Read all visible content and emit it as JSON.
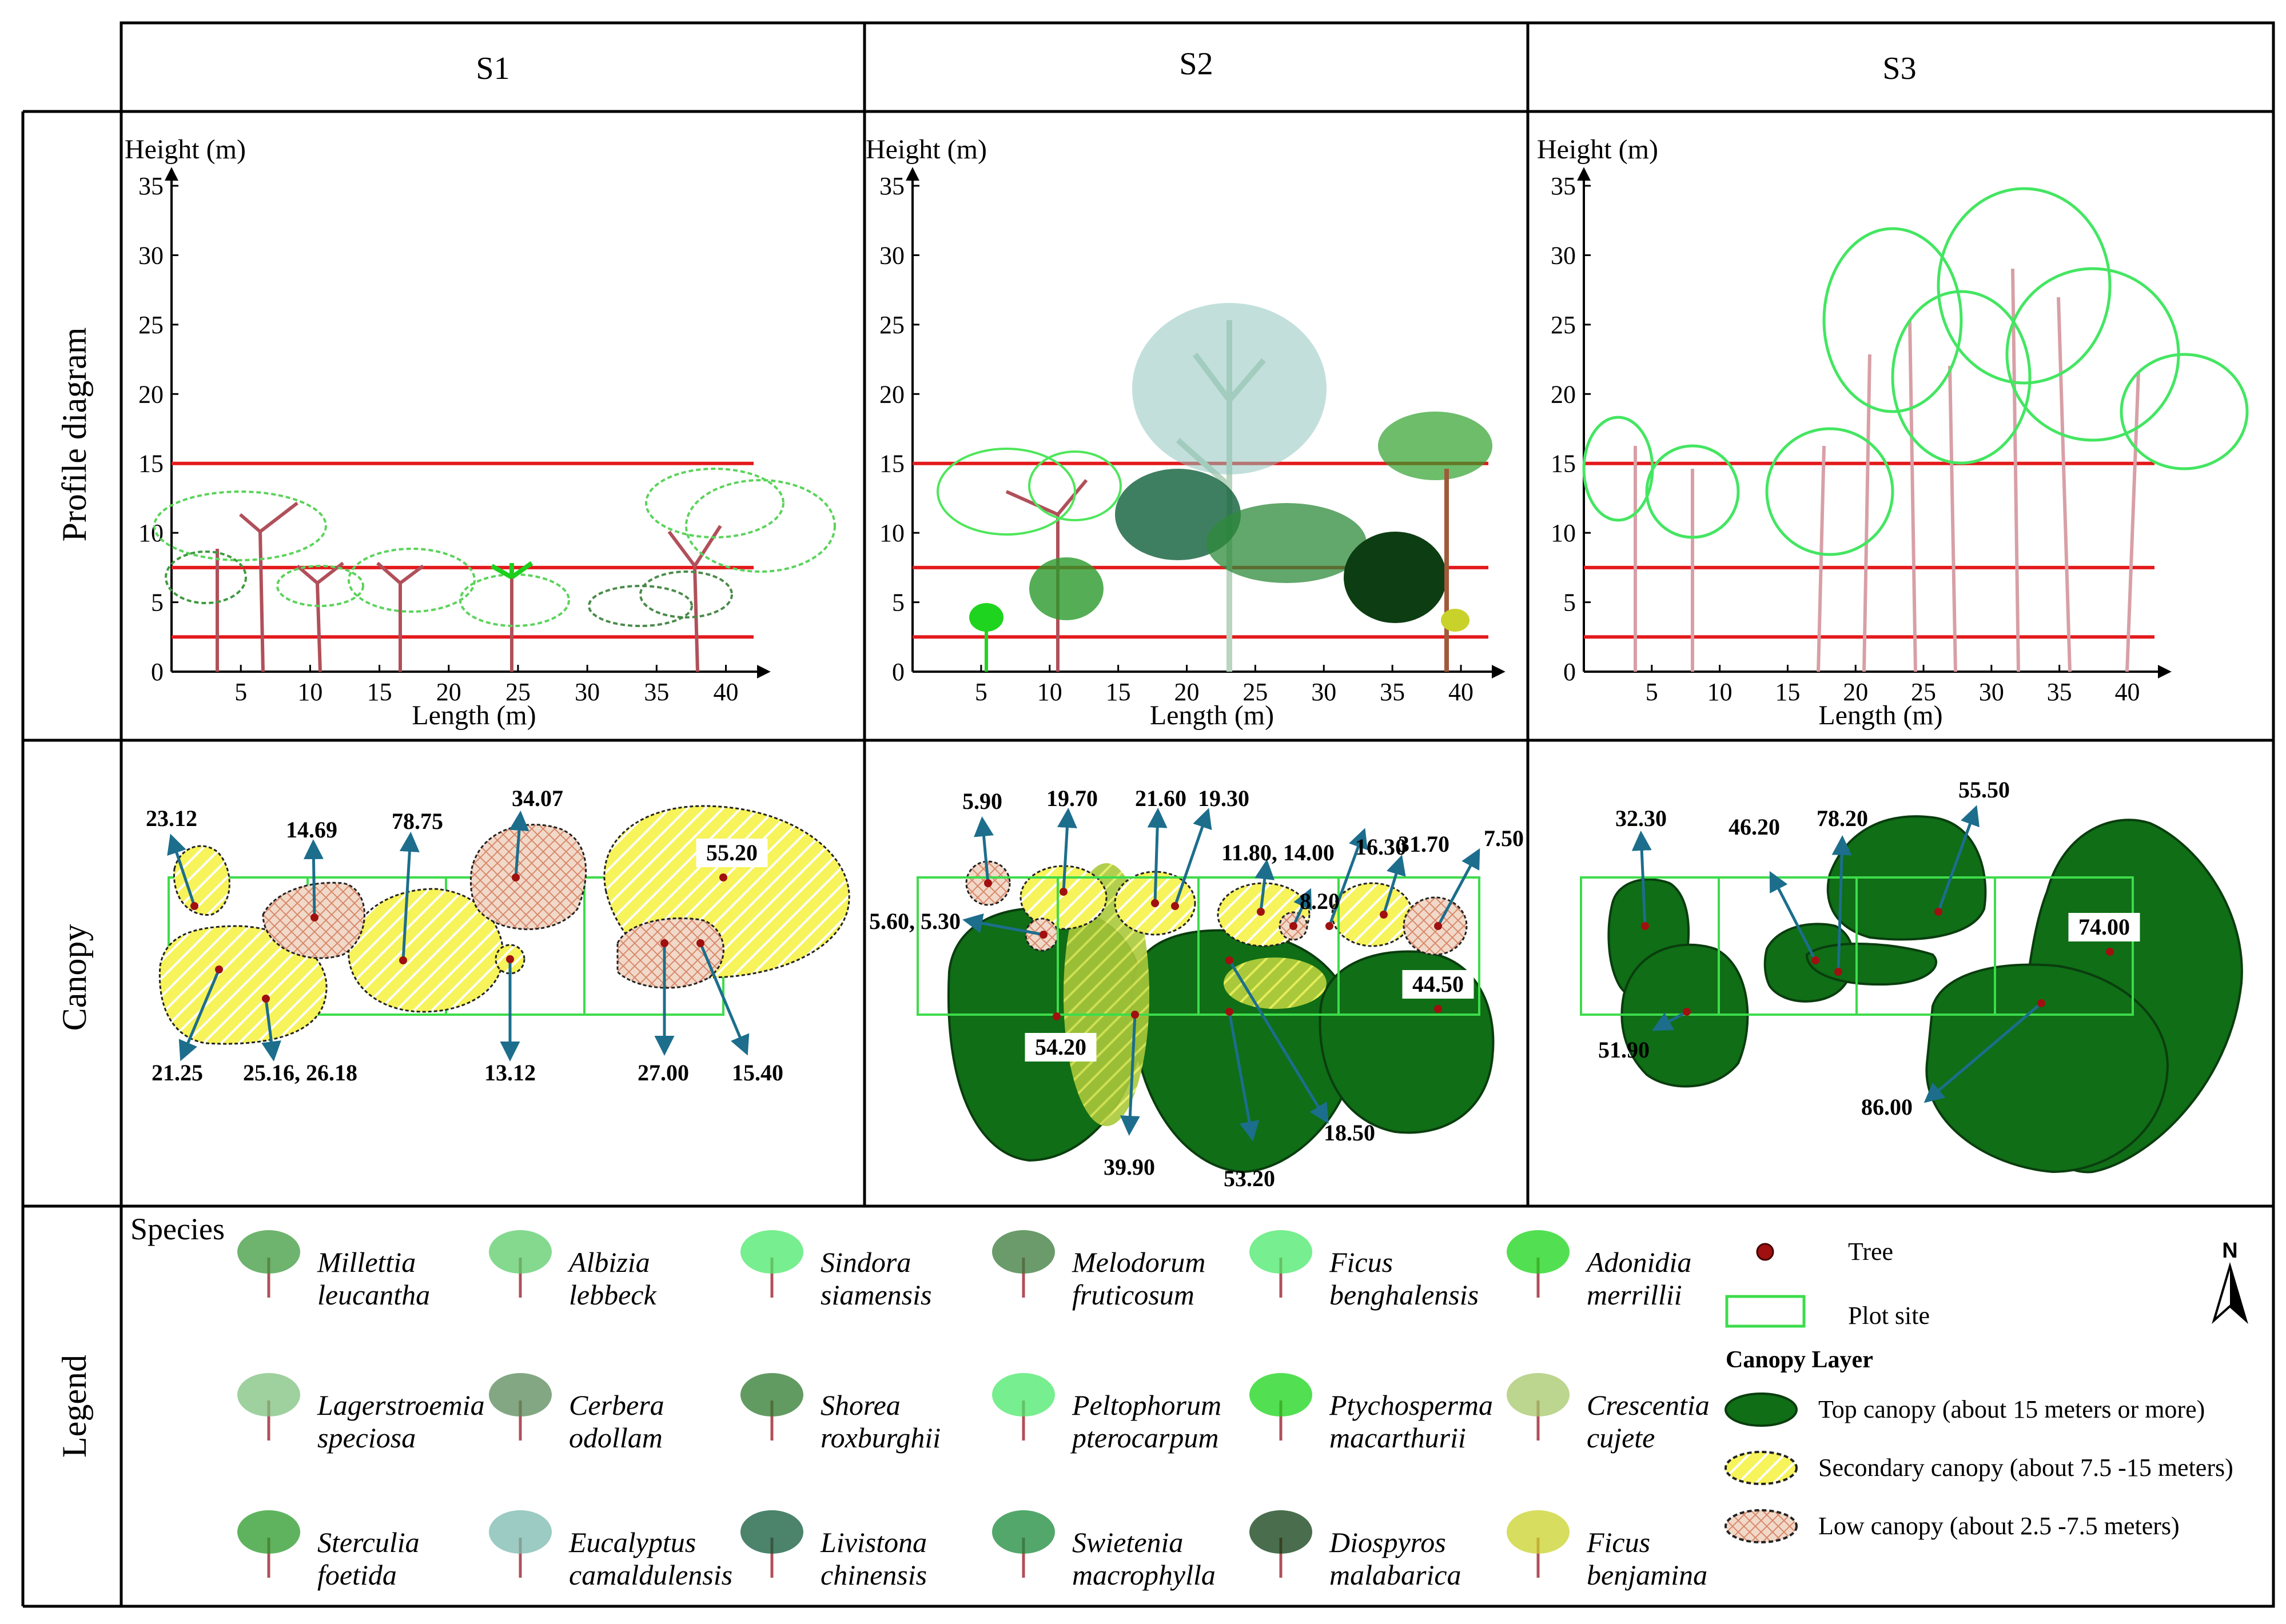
{
  "columns": [
    "S1",
    "S2",
    "S3"
  ],
  "rows": {
    "profile": "Profile diagram",
    "canopy": "Canopy",
    "legend": "Legend"
  },
  "profile": {
    "y_axis_label": "Height (m)",
    "x_axis_label": "Length (m)",
    "y_ticks": [
      "0",
      "5",
      "10",
      "15",
      "20",
      "25",
      "30",
      "35"
    ],
    "x_ticks": [
      "5",
      "10",
      "15",
      "20",
      "25",
      "30",
      "35",
      "40"
    ],
    "reference_lines_m": [
      2.5,
      7.5,
      15
    ]
  },
  "canopy": {
    "S1": [
      "23.12",
      "14.69",
      "78.75",
      "34.07",
      "55.20",
      "21.25",
      "25.16, 26.18",
      "13.12",
      "27.00",
      "15.40"
    ],
    "S2": [
      "5.90",
      "19.70",
      "21.60",
      "19.30",
      "11.80, 14.00",
      "16.30",
      "31.70",
      "7.50",
      "8.20",
      "5.60, 5.30",
      "54.20",
      "44.50",
      "39.90",
      "53.20",
      "18.50"
    ],
    "S3": [
      "32.30",
      "46.20",
      "78.20",
      "55.50",
      "74.00",
      "51.90",
      "86.00"
    ]
  },
  "legend": {
    "species_title": "Species",
    "species": [
      [
        "Millettia",
        "leucantha"
      ],
      [
        "Albizia",
        "lebbeck"
      ],
      [
        "Sindora",
        "siamensis"
      ],
      [
        "Melodorum",
        "fruticosum"
      ],
      [
        "Ficus",
        "benghalensis"
      ],
      [
        "Adonidia",
        "merrillii"
      ],
      [
        "Lagerstroemia",
        "speciosa"
      ],
      [
        "Cerbera",
        "odollam"
      ],
      [
        "Shorea",
        "roxburghii"
      ],
      [
        "Peltophorum",
        "pterocarpum"
      ],
      [
        "Ptychosperma",
        "macarthurii"
      ],
      [
        "Crescentia",
        "cujete"
      ],
      [
        "Sterculia",
        "foetida"
      ],
      [
        "Eucalyptus",
        "camaldulensis"
      ],
      [
        "Livistona",
        "chinensis"
      ],
      [
        "Swietenia",
        "macrophylla"
      ],
      [
        "Diospyros",
        "malabarica"
      ],
      [
        "Ficus",
        "benjamina"
      ]
    ],
    "tree": "Tree",
    "plot_site": "Plot site",
    "canopy_layer_title": "Canopy Layer",
    "top": "Top canopy (about 15 meters or more)",
    "secondary": "Secondary canopy (about 7.5  -15 meters)",
    "low": "Low canopy (about 2.5  -7.5 meters)",
    "north": "N"
  },
  "colors": {
    "red_line": "#e31a1c",
    "top": "#0f6e16",
    "secondary": "#f2ee3a",
    "low": "#e8c2ad",
    "plot": "#37d64d",
    "tree_dot": "#a01010",
    "arrow": "#1c6e8c"
  }
}
